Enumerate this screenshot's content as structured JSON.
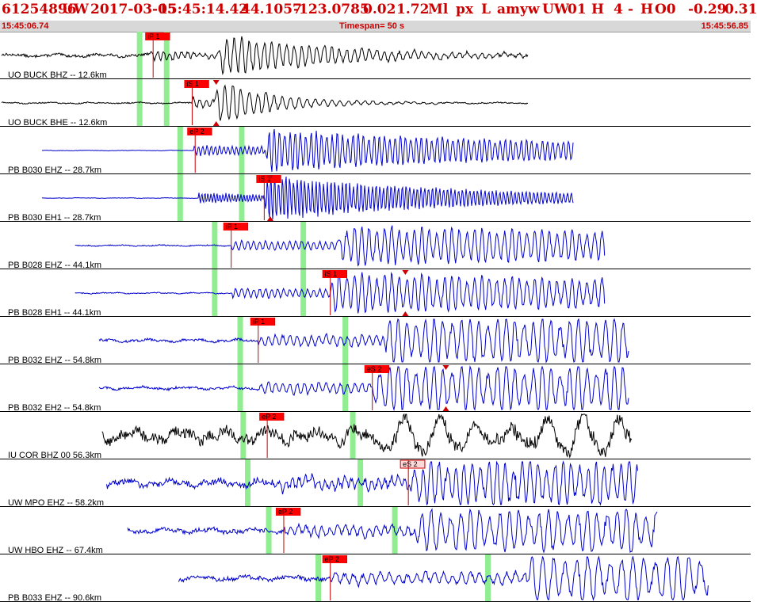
{
  "header": {
    "event_id": "61254896",
    "network": "UW",
    "date": "2017-03-05",
    "time": "15:45:14.42",
    "lat": "44.1057",
    "lon": "-123.0785",
    "depth": "0.02",
    "mag": "1.72",
    "mag_type": "Ml",
    "etype": "px",
    "gtype": "L",
    "auth": "amyw",
    "source": "UW",
    "version": "01",
    "quality": "H",
    "phase_count": "4",
    "dash": "-",
    "flag": "H",
    "origin": "O0",
    "val1": "-0.29",
    "val2": "0.31",
    "start_time": "15:45:06.74",
    "timespan": "Timespan=  50 s",
    "end_time": "15:45:56.85"
  },
  "colors": {
    "title": "#cc0000",
    "pick_fill": "#ff0000",
    "pick_fill_light": "#ffd8d8",
    "pick_line": "#cc0000",
    "green_marker": "#90ee90",
    "trace_black": "#000000",
    "trace_blue": "#0000cc",
    "separator": "#000000"
  },
  "chart_data": {
    "type": "line",
    "title": "",
    "xlim": [
      0,
      50
    ],
    "xunit": "s",
    "series": [
      {
        "name": "UO BUCK BHZ -- 12.6km",
        "color": "black",
        "start": 0.1,
        "end": 35.2,
        "p_arr": 10.0,
        "s_arr": 14.5,
        "noise": 0.12,
        "amp": 0.95,
        "period": 0.5,
        "decay": 0.13,
        "pick": "iP 1",
        "pick_time": 10.2,
        "pick_style": "solid",
        "pick_end": null,
        "green": [
          9.3,
          11.1
        ]
      },
      {
        "name": "UO BUCK BHE -- 12.6km",
        "color": "black",
        "start": 0.1,
        "end": 35.2,
        "p_arr": 12.8,
        "s_arr": 14.2,
        "noise": 0.06,
        "amp": 1.0,
        "period": 0.55,
        "decay": 0.25,
        "pick": "iS 1",
        "pick_time": 12.8,
        "pick_style": "solid",
        "pick_end": 14.4,
        "green": [
          9.3,
          11.1
        ]
      },
      {
        "name": "PB B030 EHZ -- 28.7km",
        "color": "blue",
        "start": 2.8,
        "end": 38.2,
        "p_arr": 12.9,
        "s_arr": 17.6,
        "noise": 0.02,
        "amp": 0.9,
        "period": 0.35,
        "decay": 0.04,
        "pick": "eP 2",
        "pick_time": 13.0,
        "pick_style": "solid",
        "pick_end": null,
        "green": [
          12.0,
          16.1
        ]
      },
      {
        "name": "PB B030 EH1 -- 28.7km",
        "color": "blue",
        "start": 2.8,
        "end": 38.2,
        "p_arr": 13.2,
        "s_arr": 17.5,
        "noise": 0.02,
        "amp": 1.0,
        "period": 0.25,
        "decay": 0.07,
        "pick": "iS 1",
        "pick_time": 17.6,
        "pick_style": "solid",
        "pick_end": 18.0,
        "green": [
          12.0,
          16.1
        ]
      },
      {
        "name": "PB B028 EHZ -- 44.1km",
        "color": "blue",
        "start": 5.0,
        "end": 40.3,
        "p_arr": 15.4,
        "s_arr": 22.5,
        "noise": 0.05,
        "amp": 0.85,
        "period": 0.5,
        "decay": 0.02,
        "pick": "iP 1",
        "pick_time": 15.4,
        "pick_style": "solid",
        "pick_end": null,
        "green": [
          14.3,
          20.2
        ]
      },
      {
        "name": "PB B028 EH1 -- 44.1km",
        "color": "blue",
        "start": 5.0,
        "end": 40.3,
        "p_arr": 15.5,
        "s_arr": 22.0,
        "noise": 0.05,
        "amp": 0.85,
        "period": 0.5,
        "decay": 0.02,
        "pick": "iS 1",
        "pick_time": 22.0,
        "pick_style": "solid",
        "pick_end": 27.0,
        "green": [
          14.3,
          20.2
        ]
      },
      {
        "name": "PB B032 EHZ -- 54.8km",
        "color": "blue",
        "start": 6.6,
        "end": 41.9,
        "p_arr": 17.2,
        "s_arr": 25.5,
        "noise": 0.12,
        "amp": 0.9,
        "period": 0.6,
        "decay": 0.0,
        "pick": "iP 1",
        "pick_time": 17.2,
        "pick_style": "solid",
        "pick_end": null,
        "green": [
          16.0,
          23.0
        ]
      },
      {
        "name": "PB B032 EH2 -- 54.8km",
        "color": "blue",
        "start": 6.6,
        "end": 41.9,
        "p_arr": 17.3,
        "s_arr": 24.7,
        "noise": 0.12,
        "amp": 0.9,
        "period": 0.6,
        "decay": 0.0,
        "pick": "eS 2",
        "pick_time": 24.8,
        "pick_style": "solid",
        "pick_end": 29.7,
        "green": [
          16.0,
          23.0
        ]
      },
      {
        "name": "IU COR BHZ 00 56.3km",
        "color": "black",
        "start": 6.8,
        "end": 42.1,
        "p_arr": 17.7,
        "s_arr": 25.0,
        "noise": 0.55,
        "amp": 0.6,
        "period": 2.4,
        "decay": 0.0,
        "pick": "eP 2",
        "pick_time": 17.8,
        "pick_style": "solid",
        "pick_end": null,
        "green": [
          16.2,
          23.5
        ]
      },
      {
        "name": "UW MPO EHZ -- 58.2km",
        "color": "blue",
        "start": 7.1,
        "end": 42.5,
        "p_arr": 18.2,
        "s_arr": 27.2,
        "noise": 0.3,
        "amp": 0.85,
        "period": 0.55,
        "decay": 0.0,
        "pick": "eS 2",
        "pick_time": 27.2,
        "pick_style": "light",
        "pick_end": null,
        "green": [
          16.5,
          24.0
        ]
      },
      {
        "name": "UW HBO EHZ -- 67.4km",
        "color": "blue",
        "start": 8.5,
        "end": 43.8,
        "p_arr": 18.9,
        "s_arr": 27.6,
        "noise": 0.2,
        "amp": 0.8,
        "period": 0.65,
        "decay": 0.0,
        "pick": "eP 2",
        "pick_time": 18.9,
        "pick_style": "solid",
        "pick_end": null,
        "green": [
          17.9,
          26.3
        ]
      },
      {
        "name": "PB B033 EHZ -- 90.6km",
        "color": "blue",
        "start": 11.9,
        "end": 47.2,
        "p_arr": 22.0,
        "s_arr": 35.0,
        "noise": 0.2,
        "amp": 0.9,
        "period": 0.75,
        "decay": 0.0,
        "pick": "eP 2",
        "pick_time": 22.0,
        "pick_style": "solid",
        "pick_end": null,
        "green": [
          21.2,
          32.5
        ]
      }
    ]
  }
}
